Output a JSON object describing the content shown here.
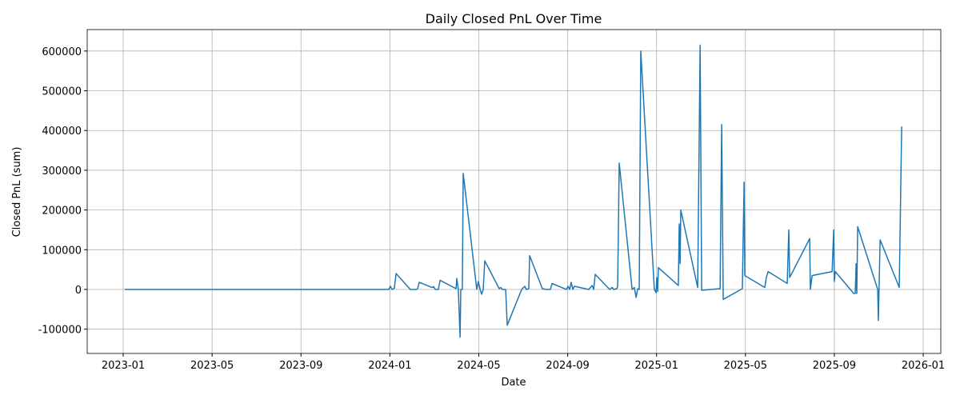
{
  "chart_data": {
    "type": "line",
    "title": "Daily Closed PnL Over Time",
    "x_label": "Date",
    "y_label": "Closed PnL (sum)",
    "grid": true,
    "xlim": [
      -1.62,
      36.79
    ],
    "xticks": [
      {
        "value": 0,
        "label": "2023-01"
      },
      {
        "value": 4,
        "label": "2023-05"
      },
      {
        "value": 8,
        "label": "2023-09"
      },
      {
        "value": 12,
        "label": "2024-01"
      },
      {
        "value": 16,
        "label": "2024-05"
      },
      {
        "value": 20,
        "label": "2024-09"
      },
      {
        "value": 24,
        "label": "2025-01"
      },
      {
        "value": 28,
        "label": "2025-05"
      },
      {
        "value": 32,
        "label": "2025-09"
      },
      {
        "value": 36,
        "label": "2026-01"
      }
    ],
    "ylim": [
      -161000,
      654000
    ],
    "yticks": [
      -100000,
      0,
      100000,
      200000,
      300000,
      400000,
      500000,
      600000
    ],
    "x": [
      0.07,
      11.95,
      12.02,
      12.1,
      12.2,
      12.28,
      12.92,
      13.18,
      13.25,
      13.32,
      13.9,
      13.97,
      14.04,
      14.18,
      14.26,
      14.98,
      15.01,
      15.08,
      15.16,
      15.19,
      15.26,
      15.3,
      15.91,
      15.98,
      16.06,
      16.13,
      16.2,
      16.27,
      16.92,
      16.99,
      17.06,
      17.21,
      17.28,
      17.93,
      18.07,
      18.14,
      18.25,
      18.29,
      18.86,
      18.97,
      19.01,
      19.22,
      19.3,
      19.94,
      20.02,
      20.09,
      20.16,
      20.23,
      20.3,
      20.95,
      21.1,
      21.17,
      21.24,
      21.89,
      22.0,
      22.07,
      22.21,
      22.25,
      22.32,
      22.9,
      23.0,
      23.08,
      23.15,
      23.22,
      23.29,
      23.9,
      23.98,
      24.01,
      24.05,
      24.08,
      24.98,
      25.02,
      25.06,
      25.09,
      25.85,
      25.96,
      26.03,
      26.86,
      26.93,
      27.0,
      27.86,
      27.94,
      27.97,
      28.87,
      28.94,
      29.02,
      29.88,
      29.95,
      29.99,
      30.89,
      30.92,
      31.0,
      31.9,
      31.97,
      32.0,
      32.04,
      32.87,
      32.94,
      32.98,
      33.01,
      33.05,
      33.95,
      33.98,
      34.06,
      34.92,
      35.03
    ],
    "series": [
      {
        "name": "Closed PnL",
        "color": "#1f77b4",
        "values": [
          0,
          0,
          8000,
          0,
          3000,
          40000,
          0,
          0,
          2000,
          18000,
          5000,
          7000,
          0,
          0,
          23000,
          2000,
          28000,
          0,
          -120000,
          0,
          0,
          292000,
          0,
          20000,
          0,
          -12000,
          0,
          72000,
          2000,
          5000,
          0,
          0,
          -90000,
          0,
          8000,
          0,
          2000,
          85000,
          2000,
          1000,
          0,
          0,
          15000,
          0,
          8000,
          0,
          18000,
          0,
          8000,
          0,
          10000,
          0,
          38000,
          0,
          5000,
          0,
          2000,
          8000,
          318000,
          0,
          5000,
          -20000,
          2000,
          0,
          600000,
          0,
          -8000,
          30000,
          -5000,
          55000,
          10000,
          165000,
          65000,
          200000,
          5000,
          615000,
          -2000,
          2000,
          415000,
          -25000,
          2000,
          270000,
          35000,
          5000,
          30000,
          45000,
          15000,
          150000,
          30000,
          128000,
          0,
          35000,
          45000,
          150000,
          20000,
          45000,
          -10000,
          -10000,
          65000,
          -10000,
          158000,
          0,
          -78000,
          125000,
          5000,
          410000
        ]
      }
    ]
  }
}
